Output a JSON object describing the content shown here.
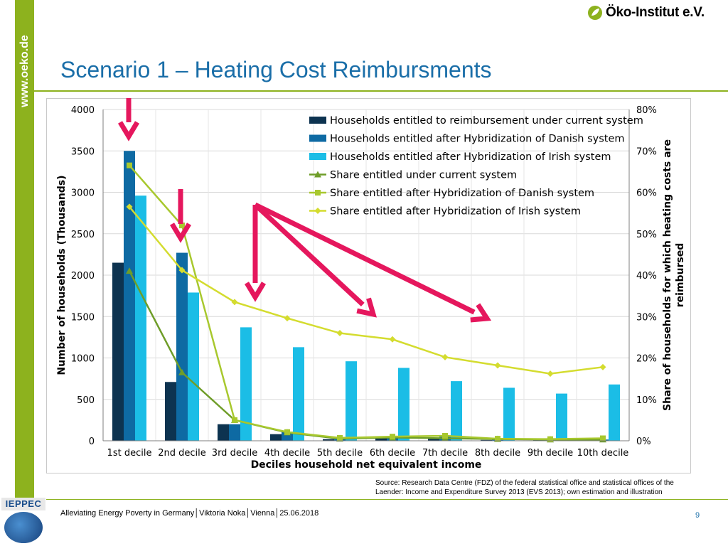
{
  "sidebar": {
    "url": "www.oeko.de"
  },
  "header": {
    "logo_text": "Öko-Institut e.V.",
    "title": "Scenario 1 – Heating Cost Reimbursments"
  },
  "source_lines": [
    "Source: Research Data Centre (FDZ) of the federal statistical office and statistical offices of the",
    "Laender: Income and Expenditure Survey 2013 (EVS 2013); own estimation and illustration"
  ],
  "footer": {
    "text": "Alleviating Energy Poverty in Germany│Viktoria Noka│Vienna│25.06.2018",
    "page_number": "9",
    "partner_logo": "IEPPEC"
  },
  "colors": {
    "accent_green": "#8db21e",
    "title_blue": "#1a6ea8",
    "arrow": "#e5175d",
    "bar_current": "#0d3350",
    "bar_danish": "#0e6aa3",
    "bar_irish": "#1bbde6",
    "line_current": "#6f9d29",
    "line_danish": "#a8c82e",
    "line_irish": "#d4dc2f"
  },
  "chart_data": {
    "type": "bar",
    "xlabel": "Deciles household net equivalent income",
    "ylabel": "Number of households (Thousands)",
    "y2label": [
      "Share of households for which heating costs are",
      "reimbursed"
    ],
    "categories": [
      "1st decile",
      "2nd decile",
      "3rd decile",
      "4th decile",
      "5th decile",
      "6th decile",
      "7th decile",
      "8th decile",
      "9th decile",
      "10th decile"
    ],
    "ylim": [
      0,
      4000
    ],
    "yticks": [
      "0",
      "500",
      "1000",
      "1500",
      "2000",
      "2500",
      "3000",
      "3500",
      "4000"
    ],
    "y2lim": [
      0,
      80
    ],
    "y2ticks": [
      "0%",
      "10%",
      "20%",
      "30%",
      "40%",
      "50%",
      "60%",
      "70%",
      "80%"
    ],
    "grid": true,
    "legend_position": "top-right",
    "bar_series": [
      {
        "name": "Households entitled to reimbursement under current system",
        "color": "#0d3350",
        "values": [
          2150,
          710,
          200,
          80,
          20,
          30,
          30,
          10,
          10,
          10
        ]
      },
      {
        "name": "Households entitled after Hybridization of Danish system",
        "color": "#0e6aa3",
        "values": [
          3500,
          2270,
          200,
          110,
          20,
          40,
          50,
          20,
          15,
          15
        ]
      },
      {
        "name": "Households entitled after Hybridization of Irish system",
        "color": "#1bbde6",
        "values": [
          2960,
          1790,
          1370,
          1130,
          960,
          880,
          720,
          640,
          570,
          680
        ]
      }
    ],
    "line_series": [
      {
        "name": "Share entitled under current system",
        "color": "#6f9d29",
        "marker": "triangle",
        "values": [
          41,
          16.5,
          5,
          2,
          0.5,
          0.8,
          0.6,
          0.4,
          0.3,
          0.3
        ]
      },
      {
        "name": "Share entitled after Hybridization of Danish system",
        "color": "#a8c82e",
        "marker": "square",
        "values": [
          66.5,
          52,
          5,
          2.1,
          0.7,
          1,
          1.2,
          0.5,
          0.4,
          0.6
        ]
      },
      {
        "name": "Share entitled after Hybridization of Irish system",
        "color": "#d4dc2f",
        "marker": "diamond",
        "values": [
          56.5,
          41.2,
          33.5,
          29.6,
          26,
          24.5,
          20.2,
          18.2,
          16.2,
          17.8
        ]
      }
    ]
  }
}
